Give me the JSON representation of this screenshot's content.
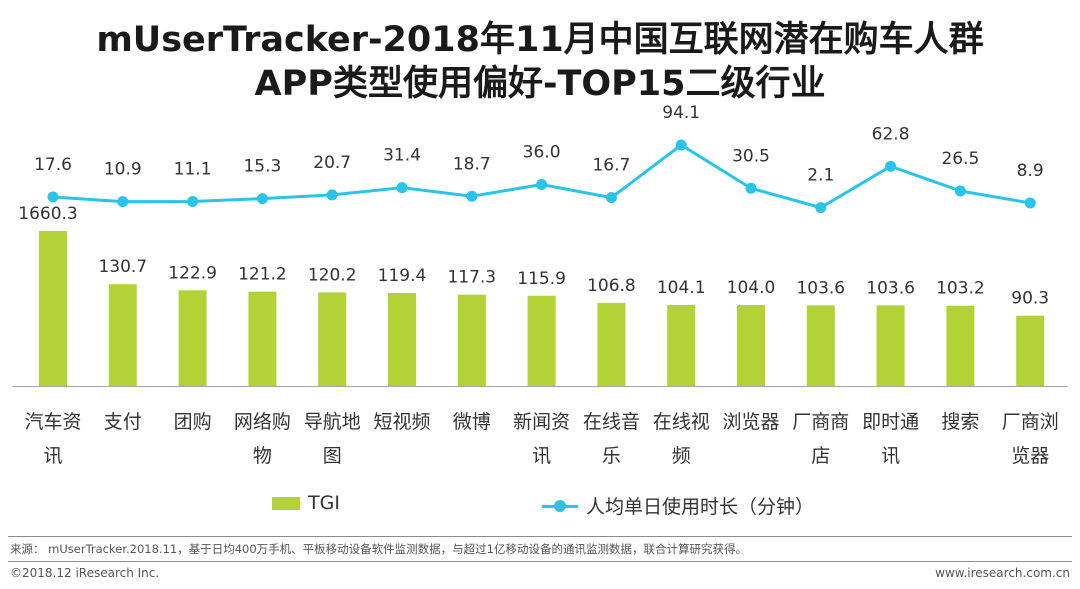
{
  "title_line1": "mUserTracker-2018年11月中国互联网潜在购车人群",
  "title_line2": "APP类型使用偏好-TOP15二级行业",
  "chart_data": {
    "type": "bar",
    "categories": [
      "汽车资讯",
      "支付",
      "团购",
      "网络购物",
      "导航地图",
      "短视频",
      "微博",
      "新闻资讯",
      "在线音乐",
      "在线视频",
      "浏览器",
      "厂商商店",
      "即时通讯",
      "搜索",
      "厂商浏览器"
    ],
    "category_labels": [
      [
        "汽车资",
        "讯"
      ],
      [
        "支付"
      ],
      [
        "团购"
      ],
      [
        "网络购",
        "物"
      ],
      [
        "导航地",
        "图"
      ],
      [
        "短视频"
      ],
      [
        "微博"
      ],
      [
        "新闻资",
        "讯"
      ],
      [
        "在线音",
        "乐"
      ],
      [
        "在线视",
        "频"
      ],
      [
        "浏览器"
      ],
      [
        "厂商商",
        "店"
      ],
      [
        "即时通",
        "讯"
      ],
      [
        "搜索"
      ],
      [
        "厂商浏",
        "览器"
      ]
    ],
    "series": [
      {
        "name": "TGI",
        "type": "bar",
        "color": "#b2d235",
        "values": [
          1660.3,
          130.7,
          122.9,
          121.2,
          120.2,
          119.4,
          117.3,
          115.9,
          106.8,
          104.1,
          104.0,
          103.6,
          103.6,
          103.2,
          90.3
        ],
        "labels": [
          "1660.3",
          "130.7",
          "122.9",
          "121.2",
          "120.2",
          "119.4",
          "117.3",
          "115.9",
          "106.8",
          "104.1",
          "104.0",
          "103.6",
          "103.6",
          "103.2",
          "90.3"
        ]
      },
      {
        "name": "人均单日使用时长（分钟）",
        "type": "line",
        "color": "#29c4e8",
        "values": [
          17.6,
          10.9,
          11.1,
          15.3,
          20.7,
          31.4,
          18.7,
          36.0,
          16.7,
          94.1,
          30.5,
          2.1,
          62.8,
          26.5,
          8.9
        ],
        "labels": [
          "17.6",
          "10.9",
          "11.1",
          "15.3",
          "20.7",
          "31.4",
          "18.7",
          "36.0",
          "16.7",
          "94.1",
          "30.5",
          "2.1",
          "62.8",
          "26.5",
          "8.9"
        ]
      }
    ],
    "axis_break": "bar axis broken between ~140 and ~1660",
    "legend_position": "bottom",
    "grid": false
  },
  "legend": {
    "bar_label": "TGI",
    "line_label": "人均单日使用时长（分钟）"
  },
  "source": "来源： mUserTracker.2018.11，基于日均400万手机、平板移动设备软件监测数据，与超过1亿移动设备的通讯监测数据，联合计算研究获得。",
  "copyright": "©2018.12 iResearch Inc.",
  "website": "www.iresearch.com.cn"
}
